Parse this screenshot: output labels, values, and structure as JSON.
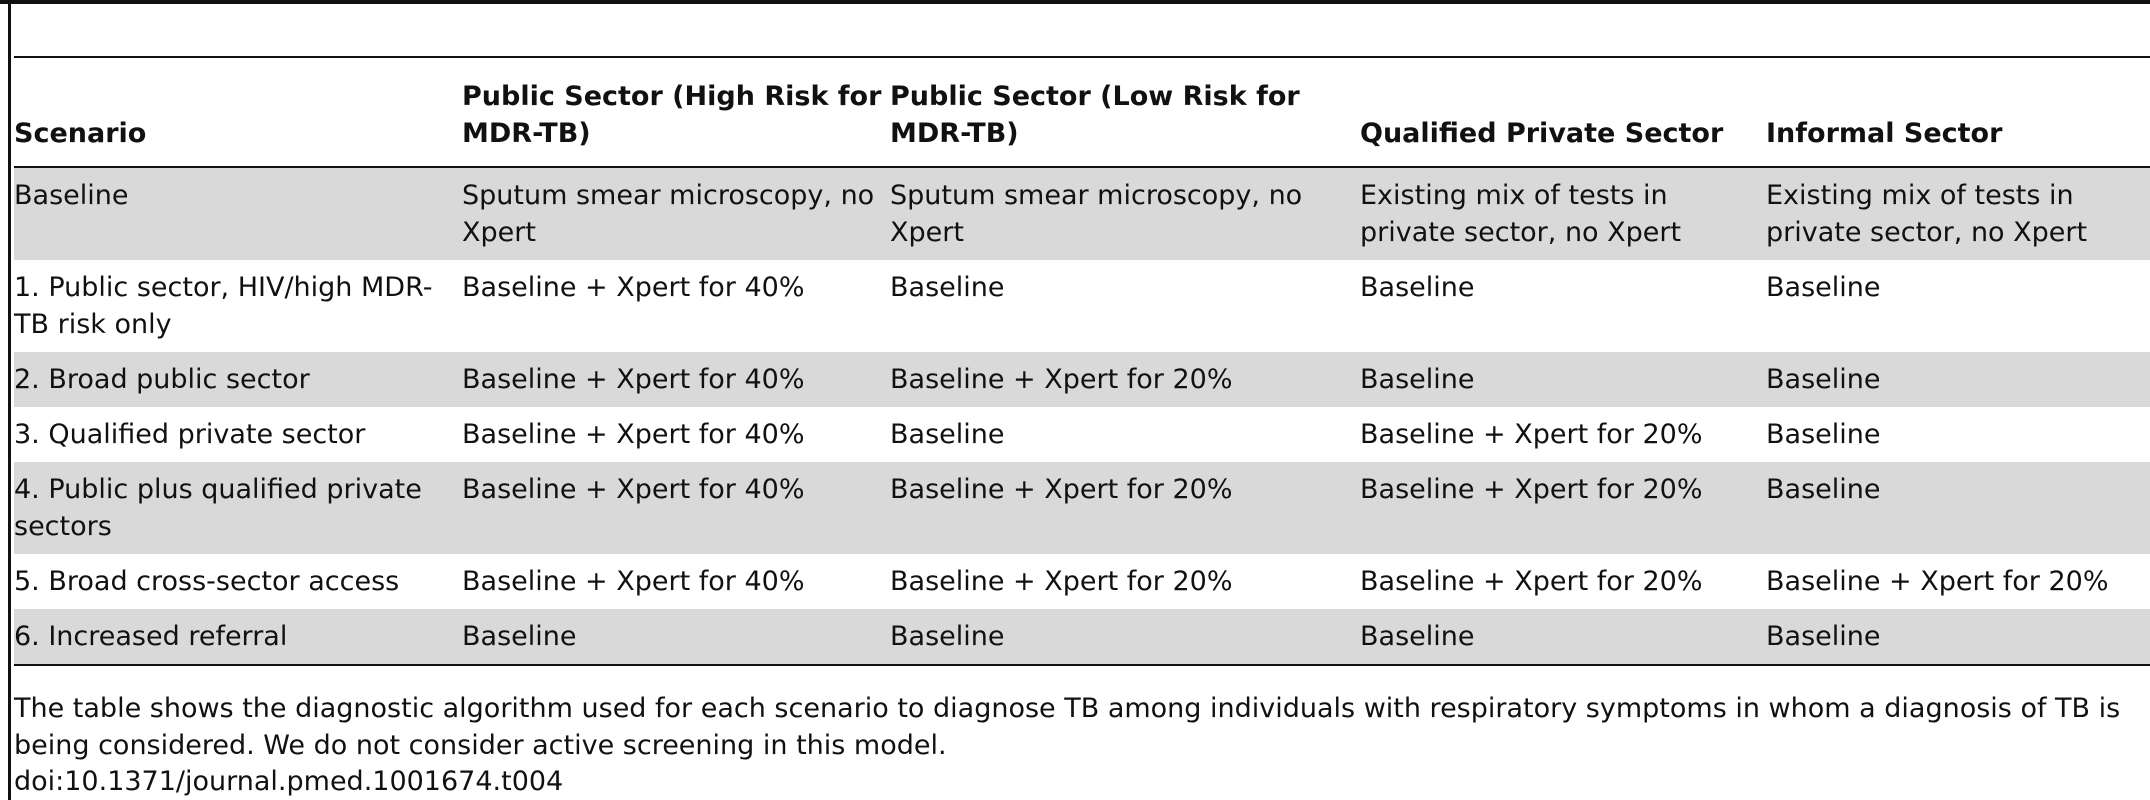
{
  "table": {
    "headers": [
      "Scenario",
      "Public Sector (High Risk for MDR-TB)",
      "Public Sector (Low Risk for MDR-TB)",
      "Qualified Private Sector",
      "Informal Sector"
    ],
    "rows": [
      [
        "Baseline",
        "Sputum smear microscopy, no Xpert",
        "Sputum smear microscopy, no Xpert",
        "Existing mix of tests in private sector, no Xpert",
        "Existing mix of tests in private sector, no Xpert"
      ],
      [
        "1. Public sector, HIV/high MDR-TB risk only",
        "Baseline + Xpert for 40%",
        "Baseline",
        "Baseline",
        "Baseline"
      ],
      [
        "2. Broad public sector",
        "Baseline + Xpert for 40%",
        "Baseline + Xpert for 20%",
        "Baseline",
        "Baseline"
      ],
      [
        "3. Qualified private sector",
        "Baseline + Xpert for 40%",
        "Baseline",
        "Baseline + Xpert for 20%",
        "Baseline"
      ],
      [
        "4. Public plus qualified private sectors",
        "Baseline + Xpert for 40%",
        "Baseline + Xpert for 20%",
        "Baseline + Xpert for 20%",
        "Baseline"
      ],
      [
        "5. Broad cross-sector access",
        "Baseline + Xpert for 40%",
        "Baseline + Xpert for 20%",
        "Baseline + Xpert for 20%",
        "Baseline + Xpert for 20%"
      ],
      [
        "6. Increased referral",
        "Baseline",
        "Baseline",
        "Baseline",
        "Baseline"
      ]
    ]
  },
  "footnote": "The table shows the diagnostic algorithm used for each scenario to diagnose TB among individuals with respiratory symptoms in whom a diagnosis of TB is being considered. We do not consider active screening in this model.",
  "doi": "doi:10.1371/journal.pmed.1001674.t004",
  "colors": {
    "shaded_row": "#d9d9d9",
    "rule": "#111111"
  }
}
